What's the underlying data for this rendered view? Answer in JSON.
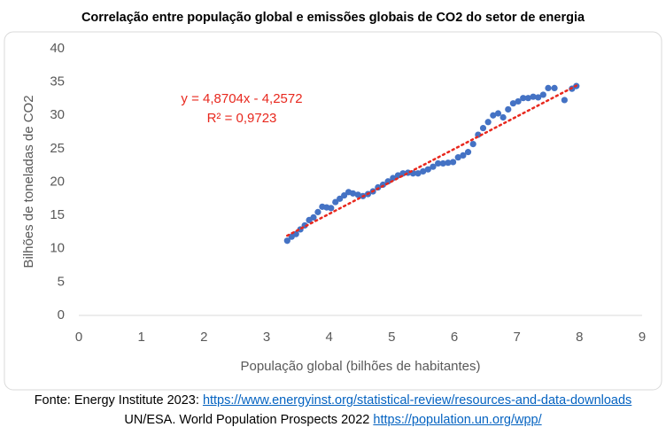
{
  "chart_data": {
    "type": "scatter",
    "title": "Correlação entre população global e emissões globais de CO2 do setor de energia",
    "x_label": "População global (bilhões de habitantes)",
    "y_label": "Bilhões de toneladas de CO2",
    "color": "#4472c4",
    "xlim": [
      0,
      9
    ],
    "xticks": [
      0,
      1,
      2,
      3,
      4,
      5,
      6,
      7,
      8,
      9
    ],
    "ylim": [
      0,
      40
    ],
    "yticks": [
      0,
      5,
      10,
      15,
      20,
      25,
      30,
      35,
      40
    ],
    "x": [
      3.33,
      3.4,
      3.47,
      3.54,
      3.61,
      3.68,
      3.75,
      3.82,
      3.89,
      3.96,
      4.03,
      4.1,
      4.17,
      4.24,
      4.31,
      4.38,
      4.46,
      4.54,
      4.62,
      4.7,
      4.78,
      4.86,
      4.94,
      5.02,
      5.1,
      5.18,
      5.26,
      5.34,
      5.42,
      5.5,
      5.58,
      5.66,
      5.74,
      5.82,
      5.9,
      5.98,
      6.06,
      6.14,
      6.22,
      6.3,
      6.38,
      6.46,
      6.54,
      6.62,
      6.7,
      6.78,
      6.86,
      6.94,
      7.02,
      7.1,
      7.18,
      7.26,
      7.34,
      7.42,
      7.5,
      7.6,
      7.76,
      7.88,
      7.95
    ],
    "values": [
      11.2,
      11.8,
      12.2,
      12.9,
      13.5,
      14.3,
      14.7,
      15.5,
      16.3,
      16.2,
      16.1,
      17.0,
      17.5,
      18.0,
      18.5,
      18.3,
      18.1,
      17.9,
      18.2,
      18.6,
      19.2,
      19.6,
      20.1,
      20.6,
      21.0,
      21.3,
      21.4,
      21.3,
      21.3,
      21.6,
      21.9,
      22.3,
      22.8,
      22.8,
      22.9,
      23.0,
      23.7,
      24.0,
      24.5,
      25.7,
      27.1,
      28.1,
      29.0,
      30.0,
      30.3,
      29.7,
      30.9,
      31.8,
      32.1,
      32.6,
      32.6,
      32.8,
      32.7,
      33.1,
      34.1,
      34.1,
      32.3,
      34.0,
      34.4
    ],
    "trendline": {
      "slope": 4.8704,
      "intercept": -4.2572,
      "color": "#e8281e",
      "equation": "y = 4,8704x - 4,2572",
      "r2": "R² = 0,9723"
    }
  },
  "footer": [
    {
      "text": "Fonte: Energy Institute 2023:",
      "link": "https://www.energyinst.org/statistical-review/resources-and-data-downloads"
    },
    {
      "text": "UN/ESA. World Population Prospects 2022",
      "link": "https://population.un.org/wpp/"
    }
  ]
}
